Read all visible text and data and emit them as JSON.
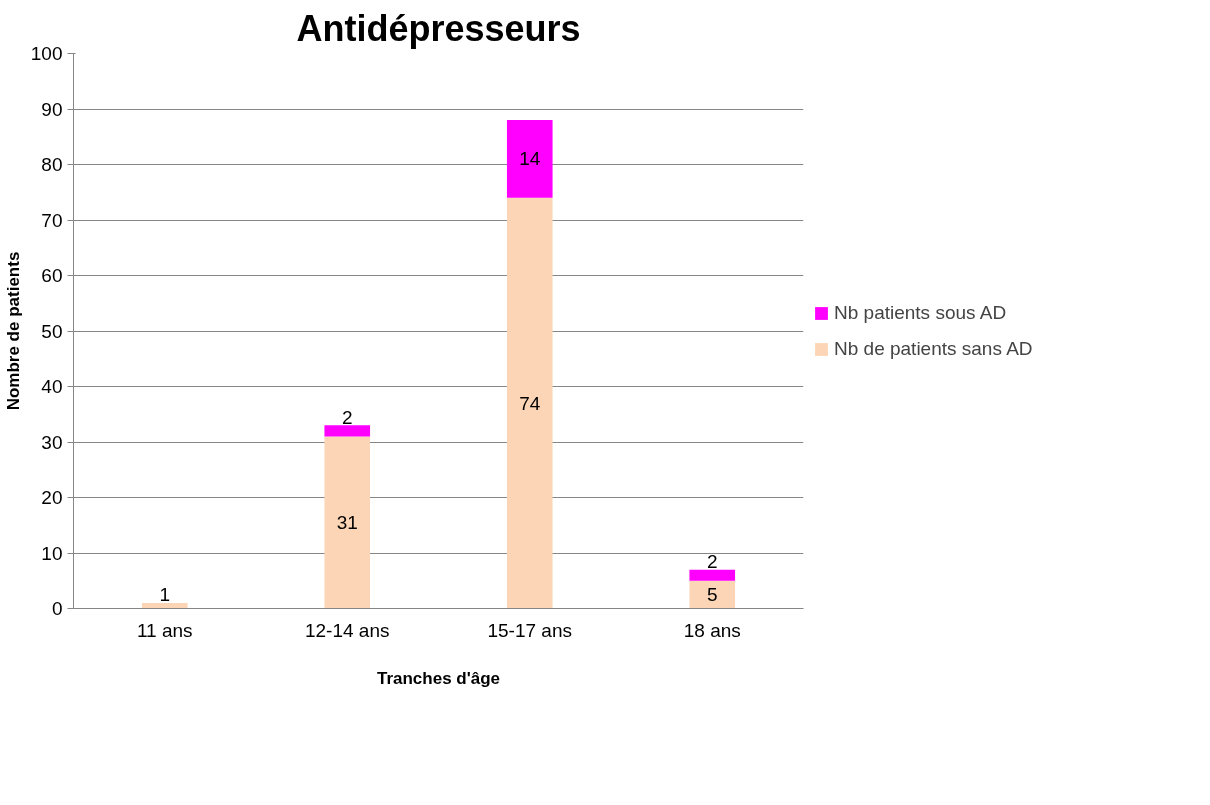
{
  "chart_data": {
    "type": "bar",
    "title": "Antidépresseurs",
    "xlabel": "Tranches d'âge",
    "ylabel": "Nombre de patients",
    "categories": [
      "11 ans",
      "12-14 ans",
      "15-17 ans",
      "18 ans"
    ],
    "stacked": true,
    "series": [
      {
        "name": "Nb de patients sans AD",
        "color": "#fbd5b5",
        "values": [
          1,
          31,
          74,
          5
        ]
      },
      {
        "name": "Nb patients sous AD",
        "color": "#ff00ff",
        "values": [
          null,
          2,
          14,
          2
        ]
      }
    ],
    "ylim": [
      0,
      100
    ],
    "yticks": [
      0,
      10,
      20,
      30,
      40,
      50,
      60,
      70,
      80,
      90,
      100
    ],
    "grid": "y",
    "legend": "right",
    "data_labels": true
  }
}
